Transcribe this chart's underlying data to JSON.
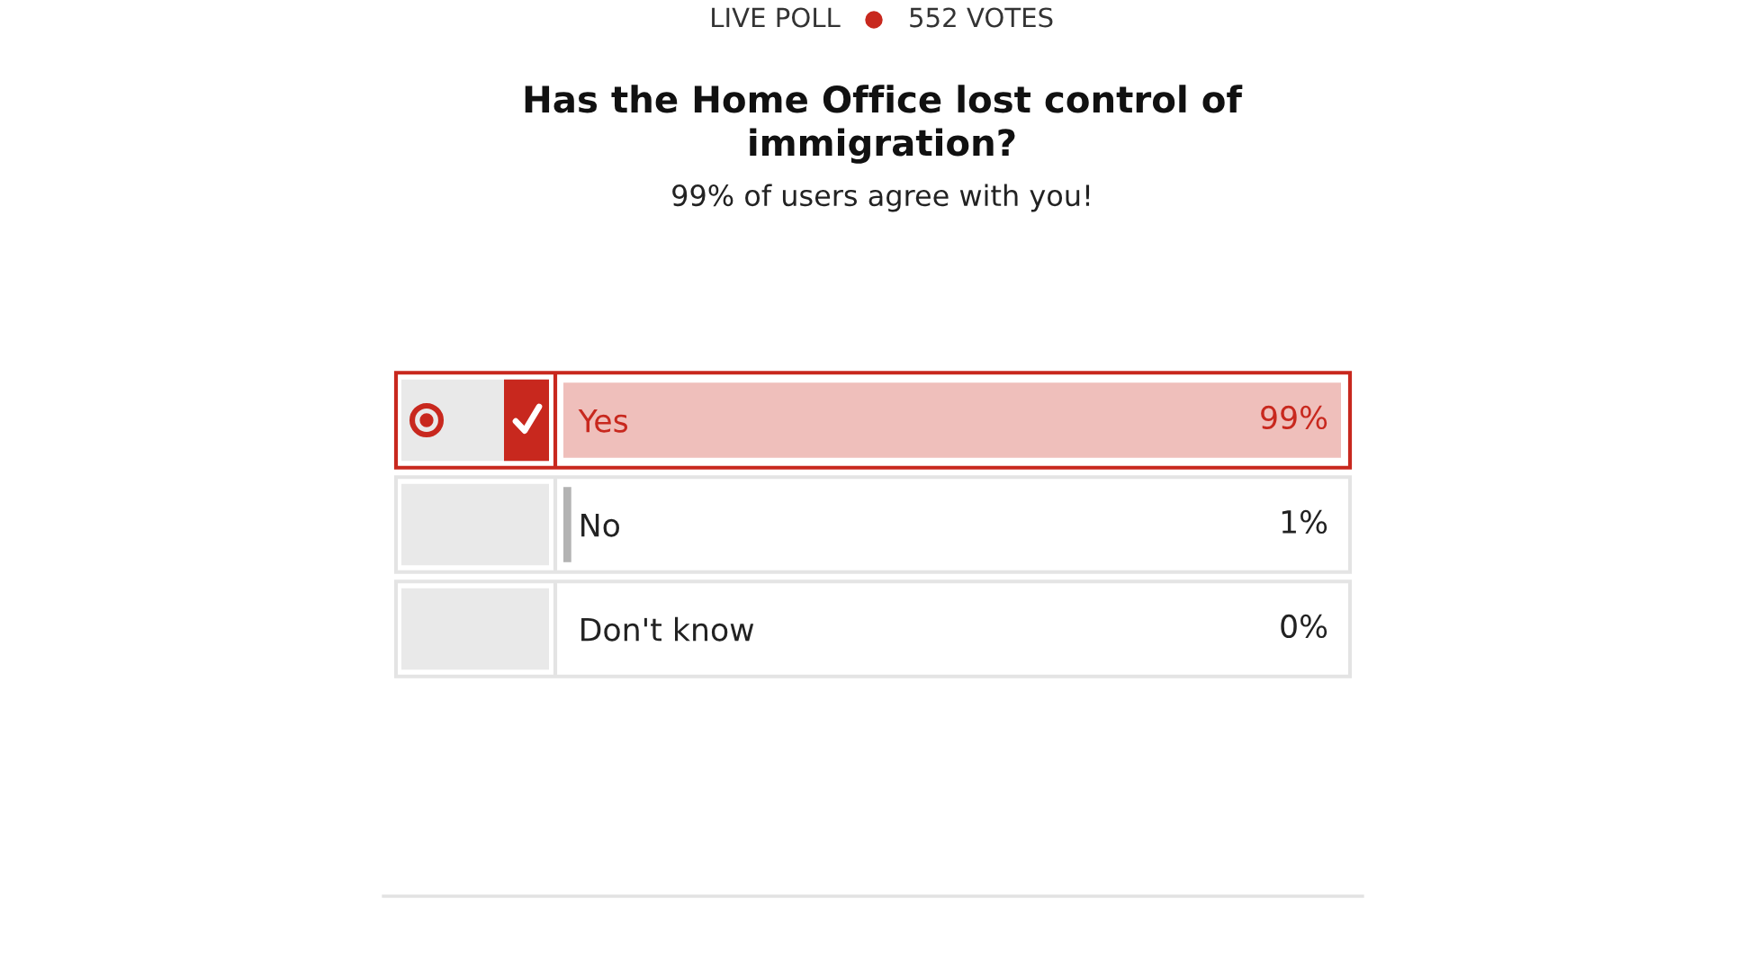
{
  "chart_data": {
    "type": "bar",
    "orientation": "horizontal",
    "title": "Has the Home Office lost control of immigration?",
    "subtitle": "99% of users agree with you!",
    "annotations": [
      "LIVE POLL",
      "552 VOTES"
    ],
    "categories": [
      "Yes",
      "No",
      "Don't know"
    ],
    "values": [
      99,
      1,
      0
    ],
    "value_labels": [
      "99%",
      "1%",
      "0%"
    ],
    "colors": [
      "#efbfbb",
      "#b3b3b3",
      "#b3b3b3"
    ],
    "tick_labels": "y"
  }
}
